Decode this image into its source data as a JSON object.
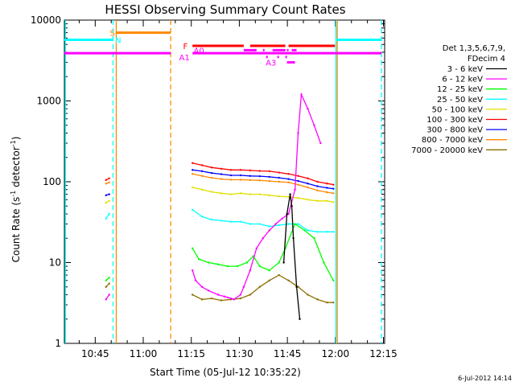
{
  "chart_data": {
    "type": "line",
    "title": "HESSI Observing Summary Count Rates",
    "xlabel": "Start Time (05-Jul-12 10:35:22)",
    "ylabel": "Count Rate (s⁻¹ detector⁻¹)",
    "ylabel_base": "Count Rate (s",
    "ylabel_sup1": "-1",
    "ylabel_mid": " detector",
    "ylabel_sup2": "-1",
    "ylabel_end": ")",
    "x_unit": "minutes after 10:35:22",
    "xlim": [
      0,
      100
    ],
    "ylim": [
      1,
      10000
    ],
    "yscale": "log",
    "x_ticks": [
      {
        "x": 9.63,
        "label": "10:45"
      },
      {
        "x": 24.63,
        "label": "11:00"
      },
      {
        "x": 39.63,
        "label": "11:15"
      },
      {
        "x": 54.63,
        "label": "11:30"
      },
      {
        "x": 69.63,
        "label": "11:45"
      },
      {
        "x": 84.63,
        "label": "12:00"
      },
      {
        "x": 99.63,
        "label": "12:15"
      }
    ],
    "y_ticks": [
      {
        "y": 1,
        "label": "1"
      },
      {
        "y": 10,
        "label": "10"
      },
      {
        "y": 100,
        "label": "100"
      },
      {
        "y": 1000,
        "label": "1000"
      },
      {
        "y": 10000,
        "label": "10000"
      }
    ],
    "legend_title": [
      "Det 1,3,5,6,7,9,",
      "FDecim 4"
    ],
    "legend_placement": "right",
    "series": [
      {
        "name": "3 - 6 keV",
        "color": "#000000",
        "x": [
          68.5,
          69.5,
          70.5,
          71.0,
          71.5,
          72.5,
          73.5
        ],
        "y": [
          10,
          40,
          70,
          50,
          20,
          5,
          2
        ]
      },
      {
        "name": "6 - 12 keV",
        "color": "#ff00ff",
        "x": [
          13.0,
          14.0,
          40.0,
          41.0,
          43.0,
          45.0,
          48.0,
          50.0,
          51.0,
          52.0,
          53.0,
          55.0,
          56.0,
          58.0,
          60.0,
          62.0,
          64.0,
          66.0,
          68.0,
          70.0,
          72.0,
          73.0,
          74.0,
          76.0,
          78.0,
          80.0
        ],
        "y": [
          3.5,
          4,
          8,
          6,
          5,
          4.5,
          4,
          3.8,
          3.7,
          3.6,
          3.5,
          4,
          5,
          8,
          15,
          20,
          25,
          30,
          35,
          40,
          80,
          400,
          1200,
          800,
          500,
          300
        ]
      },
      {
        "name": "12 - 25 keV",
        "color": "#00ff00",
        "x": [
          13.0,
          14.0,
          40.0,
          42.0,
          45.0,
          48.0,
          51.0,
          54.0,
          57.0,
          59.0,
          61.0,
          64.0,
          67.0,
          69.0,
          72.0,
          75.0,
          78.0,
          81.0,
          84.0
        ],
        "y": [
          6,
          6.5,
          15,
          11,
          10,
          9.5,
          9,
          9,
          10,
          12,
          9,
          8,
          10,
          15,
          30,
          25,
          20,
          10,
          6
        ]
      },
      {
        "name": "25 - 50 keV",
        "color": "#00ffff",
        "x": [
          13.0,
          14.0,
          40.0,
          43.0,
          46.0,
          49.0,
          52.0,
          55.0,
          58.0,
          61.0,
          64.0,
          67.0,
          70.0,
          73.0,
          76.0,
          79.0,
          82.0,
          84.0
        ],
        "y": [
          35,
          40,
          45,
          37,
          34,
          33,
          32,
          32,
          30,
          30,
          28,
          29,
          30,
          30,
          25,
          24,
          24,
          24
        ]
      },
      {
        "name": "50 - 100 keV",
        "color": "#e0e000",
        "x": [
          13.0,
          14.0,
          40.0,
          43.0,
          46.0,
          49.0,
          52.0,
          55.0,
          58.0,
          61.0,
          64.0,
          67.0,
          70.0,
          73.0,
          76.0,
          79.0,
          82.0,
          84.0
        ],
        "y": [
          55,
          58,
          85,
          80,
          75,
          72,
          70,
          72,
          70,
          70,
          68,
          66,
          65,
          63,
          60,
          58,
          58,
          56
        ]
      },
      {
        "name": "100 - 300 keV",
        "color": "#ff0000",
        "x": [
          13.0,
          14.0,
          40.0,
          43.0,
          46.0,
          49.0,
          52.0,
          55.0,
          58.0,
          61.0,
          64.0,
          67.0,
          70.0,
          73.0,
          76.0,
          79.0,
          82.0,
          84.0
        ],
        "y": [
          105,
          110,
          170,
          160,
          150,
          145,
          140,
          140,
          138,
          136,
          135,
          130,
          125,
          118,
          110,
          100,
          95,
          92
        ]
      },
      {
        "name": "300 - 800 keV",
        "color": "#0000ff",
        "x": [
          13.0,
          14.0,
          40.0,
          43.0,
          46.0,
          49.0,
          52.0,
          55.0,
          58.0,
          61.0,
          64.0,
          67.0,
          70.0,
          73.0,
          76.0,
          79.0,
          82.0,
          84.0
        ],
        "y": [
          68,
          70,
          140,
          135,
          128,
          124,
          120,
          120,
          118,
          117,
          115,
          112,
          108,
          102,
          95,
          88,
          84,
          82
        ]
      },
      {
        "name": "800 - 7000 keV",
        "color": "#ff8800",
        "x": [
          13.0,
          14.0,
          40.0,
          43.0,
          46.0,
          49.0,
          52.0,
          55.0,
          58.0,
          61.0,
          64.0,
          67.0,
          70.0,
          73.0,
          76.0,
          79.0,
          82.0,
          84.0
        ],
        "y": [
          95,
          98,
          125,
          118,
          112,
          108,
          106,
          106,
          105,
          104,
          102,
          100,
          98,
          92,
          85,
          78,
          74,
          72
        ]
      },
      {
        "name": "7000 - 20000 keV",
        "color": "#8b7000",
        "x": [
          13.0,
          14.0,
          40.0,
          43.0,
          46.0,
          49.0,
          52.0,
          55.0,
          58.0,
          61.0,
          64.0,
          67.0,
          70.0,
          73.0,
          76.0,
          79.0,
          82.0,
          84.0
        ],
        "y": [
          5,
          5.5,
          4,
          3.5,
          3.6,
          3.4,
          3.5,
          3.6,
          4,
          5,
          6,
          7,
          6,
          5,
          4,
          3.5,
          3.2,
          3.2
        ]
      }
    ],
    "vertical_lines": [
      {
        "x": 0.3,
        "color": "#00ffff",
        "style": "solid"
      },
      {
        "x": 15.2,
        "color": "#00ffff",
        "style": "dashed"
      },
      {
        "x": 16.2,
        "color": "#ff8800",
        "style": "solid"
      },
      {
        "x": 33.2,
        "color": "#ff8800",
        "style": "dashed"
      },
      {
        "x": 84.8,
        "color": "#00ffff",
        "style": "solid"
      },
      {
        "x": 85.2,
        "color": "#ff8800",
        "style": "solid"
      },
      {
        "x": 99.0,
        "color": "#00ffff",
        "style": "dashed"
      }
    ],
    "flag_segments": [
      {
        "color": "#00ffff",
        "y": 5700,
        "ranges": [
          [
            0,
            15.2
          ],
          [
            85.0,
            99.0
          ]
        ]
      },
      {
        "color": "#ff00ff",
        "y": 3900,
        "ranges": [
          [
            0,
            33.2
          ],
          [
            40.0,
            99.0
          ]
        ]
      },
      {
        "color": "#ff8800",
        "y": 7000,
        "ranges": [
          [
            16.0,
            33.2
          ]
        ]
      },
      {
        "color": "#ff0000",
        "y": 4800,
        "ranges": [
          [
            40.0,
            56.0
          ],
          [
            58.0,
            69.0
          ],
          [
            70.0,
            84.5
          ]
        ]
      },
      {
        "color": "#ff00ff",
        "y": 4250,
        "ranges": [
          [
            56.0,
            60.0
          ],
          [
            62.0,
            62.5
          ],
          [
            65.0,
            69.0
          ],
          [
            69.5,
            70.0
          ],
          [
            71.0,
            72.5
          ]
        ]
      },
      {
        "color": "#ff00ff",
        "y": 3500,
        "ranges": [
          [
            63.0,
            63.5
          ],
          [
            66.5,
            67.0
          ],
          [
            69.0,
            69.5
          ]
        ]
      },
      {
        "color": "#ff00ff",
        "y": 3000,
        "ranges": [
          [
            69.5,
            72.0
          ]
        ]
      }
    ],
    "flag_labels": [
      {
        "text": "S",
        "x": 15.0,
        "y": 7000,
        "color": "#ff8800"
      },
      {
        "text": "N",
        "x": 16.8,
        "y": 5700,
        "color": "#00ffff"
      },
      {
        "text": "F",
        "x": 37.8,
        "y": 4800,
        "color": "#ff0000"
      },
      {
        "text": "A0",
        "x": 42.0,
        "y": 4250,
        "color": "#ff00ff"
      },
      {
        "text": "A1",
        "x": 37.5,
        "y": 3500,
        "color": "#ff00ff"
      },
      {
        "text": "A3",
        "x": 64.5,
        "y": 3000,
        "color": "#ff00ff"
      }
    ]
  },
  "footer": {
    "timestamp": "6-Jul-2012 14:14"
  }
}
